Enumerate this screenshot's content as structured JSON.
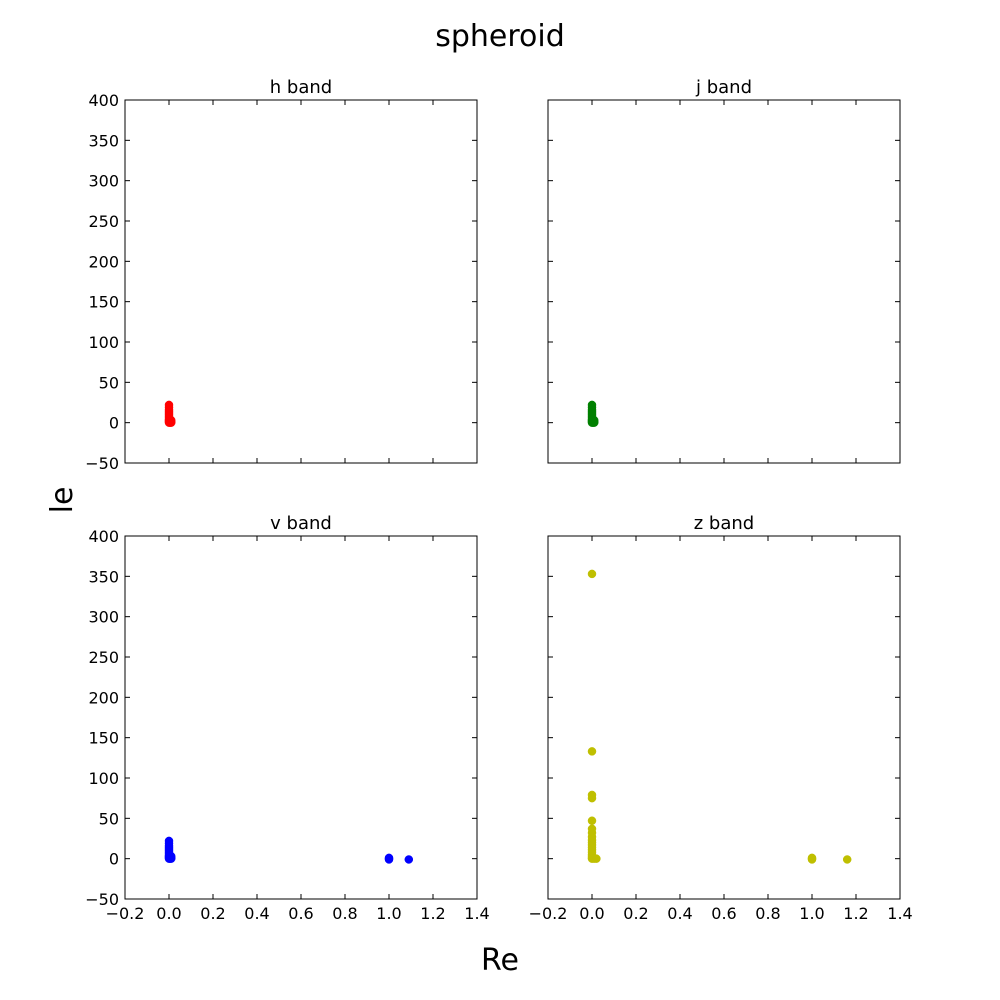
{
  "figure": {
    "title": "spheroid",
    "xlabel": "Re",
    "ylabel": "le"
  },
  "chart_data": [
    {
      "type": "scatter",
      "title": "h band",
      "color": "#ff0000",
      "xlim": [
        -0.2,
        1.4
      ],
      "ylim": [
        -50,
        400
      ],
      "x_ticks": [
        -0.2,
        0.0,
        0.2,
        0.4,
        0.6,
        0.8,
        1.0,
        1.2,
        1.4
      ],
      "y_ticks": [
        -50,
        0,
        50,
        100,
        150,
        200,
        250,
        300,
        350,
        400
      ],
      "x_tick_labels": [
        "−0.2",
        "0.0",
        "0.2",
        "0.4",
        "0.6",
        "0.8",
        "1.0",
        "1.2",
        "1.4"
      ],
      "y_tick_labels": [
        "−50",
        "0",
        "50",
        "100",
        "150",
        "200",
        "250",
        "300",
        "350",
        "400"
      ],
      "show_x_ticklabels": false,
      "show_y_ticklabels": true,
      "points": [
        [
          0.0,
          22
        ],
        [
          0.0,
          19
        ],
        [
          0.0,
          16
        ],
        [
          0.0,
          14
        ],
        [
          0.0,
          12
        ],
        [
          0.0,
          10
        ],
        [
          0.0,
          8
        ],
        [
          0.0,
          6
        ],
        [
          0.0,
          4
        ],
        [
          0.0,
          3
        ],
        [
          0.0,
          2
        ],
        [
          0.0,
          1
        ],
        [
          0.0,
          0
        ],
        [
          0.005,
          0
        ],
        [
          0.01,
          1
        ],
        [
          0.01,
          0
        ],
        [
          0.005,
          2
        ],
        [
          0.01,
          3
        ]
      ]
    },
    {
      "type": "scatter",
      "title": "j band",
      "color": "#008000",
      "xlim": [
        -0.2,
        1.4
      ],
      "ylim": [
        -50,
        400
      ],
      "x_ticks": [
        -0.2,
        0.0,
        0.2,
        0.4,
        0.6,
        0.8,
        1.0,
        1.2,
        1.4
      ],
      "y_ticks": [
        -50,
        0,
        50,
        100,
        150,
        200,
        250,
        300,
        350,
        400
      ],
      "x_tick_labels": [
        "−0.2",
        "0.0",
        "0.2",
        "0.4",
        "0.6",
        "0.8",
        "1.0",
        "1.2",
        "1.4"
      ],
      "y_tick_labels": [
        "−50",
        "0",
        "50",
        "100",
        "150",
        "200",
        "250",
        "300",
        "350",
        "400"
      ],
      "show_x_ticklabels": false,
      "show_y_ticklabels": false,
      "points": [
        [
          0.0,
          22
        ],
        [
          0.0,
          19
        ],
        [
          0.0,
          16
        ],
        [
          0.0,
          14
        ],
        [
          0.0,
          12
        ],
        [
          0.0,
          10
        ],
        [
          0.0,
          8
        ],
        [
          0.0,
          6
        ],
        [
          0.0,
          4
        ],
        [
          0.0,
          3
        ],
        [
          0.0,
          2
        ],
        [
          0.0,
          1
        ],
        [
          0.0,
          0
        ],
        [
          0.005,
          0
        ],
        [
          0.01,
          1
        ],
        [
          0.01,
          0
        ],
        [
          0.005,
          2
        ],
        [
          0.01,
          3
        ]
      ]
    },
    {
      "type": "scatter",
      "title": "v band",
      "color": "#0000ff",
      "xlim": [
        -0.2,
        1.4
      ],
      "ylim": [
        -50,
        400
      ],
      "x_ticks": [
        -0.2,
        0.0,
        0.2,
        0.4,
        0.6,
        0.8,
        1.0,
        1.2,
        1.4
      ],
      "y_ticks": [
        -50,
        0,
        50,
        100,
        150,
        200,
        250,
        300,
        350,
        400
      ],
      "x_tick_labels": [
        "−0.2",
        "0.0",
        "0.2",
        "0.4",
        "0.6",
        "0.8",
        "1.0",
        "1.2",
        "1.4"
      ],
      "y_tick_labels": [
        "−50",
        "0",
        "50",
        "100",
        "150",
        "200",
        "250",
        "300",
        "350",
        "400"
      ],
      "show_x_ticklabels": true,
      "show_y_ticklabels": true,
      "points": [
        [
          0.0,
          22
        ],
        [
          0.0,
          19
        ],
        [
          0.0,
          16
        ],
        [
          0.0,
          14
        ],
        [
          0.0,
          12
        ],
        [
          0.0,
          10
        ],
        [
          0.0,
          8
        ],
        [
          0.0,
          6
        ],
        [
          0.0,
          4
        ],
        [
          0.0,
          3
        ],
        [
          0.0,
          2
        ],
        [
          0.0,
          1
        ],
        [
          0.0,
          0
        ],
        [
          0.005,
          0
        ],
        [
          0.01,
          1
        ],
        [
          0.01,
          0
        ],
        [
          0.005,
          2
        ],
        [
          0.01,
          3
        ],
        [
          1.0,
          1
        ],
        [
          1.0,
          0
        ],
        [
          1.0,
          -1
        ],
        [
          1.09,
          -1
        ]
      ]
    },
    {
      "type": "scatter",
      "title": "z band",
      "color": "#bfbf00",
      "xlim": [
        -0.2,
        1.4
      ],
      "ylim": [
        -50,
        400
      ],
      "x_ticks": [
        -0.2,
        0.0,
        0.2,
        0.4,
        0.6,
        0.8,
        1.0,
        1.2,
        1.4
      ],
      "y_ticks": [
        -50,
        0,
        50,
        100,
        150,
        200,
        250,
        300,
        350,
        400
      ],
      "x_tick_labels": [
        "−0.2",
        "0.0",
        "0.2",
        "0.4",
        "0.6",
        "0.8",
        "1.0",
        "1.2",
        "1.4"
      ],
      "y_tick_labels": [
        "−50",
        "0",
        "50",
        "100",
        "150",
        "200",
        "250",
        "300",
        "350",
        "400"
      ],
      "show_x_ticklabels": true,
      "show_y_ticklabels": false,
      "points": [
        [
          0.0,
          353
        ],
        [
          0.0,
          133
        ],
        [
          0.0,
          79
        ],
        [
          0.0,
          75
        ],
        [
          0.0,
          47
        ],
        [
          0.0,
          37
        ],
        [
          0.0,
          32
        ],
        [
          0.0,
          27
        ],
        [
          0.0,
          23
        ],
        [
          0.0,
          20
        ],
        [
          0.0,
          17
        ],
        [
          0.0,
          14
        ],
        [
          0.0,
          11
        ],
        [
          0.0,
          8
        ],
        [
          0.0,
          5
        ],
        [
          0.0,
          3
        ],
        [
          0.0,
          1
        ],
        [
          0.0,
          0
        ],
        [
          0.01,
          0
        ],
        [
          0.02,
          0
        ],
        [
          1.0,
          1
        ],
        [
          1.0,
          0
        ],
        [
          1.0,
          -1
        ],
        [
          1.16,
          -1
        ]
      ]
    }
  ]
}
